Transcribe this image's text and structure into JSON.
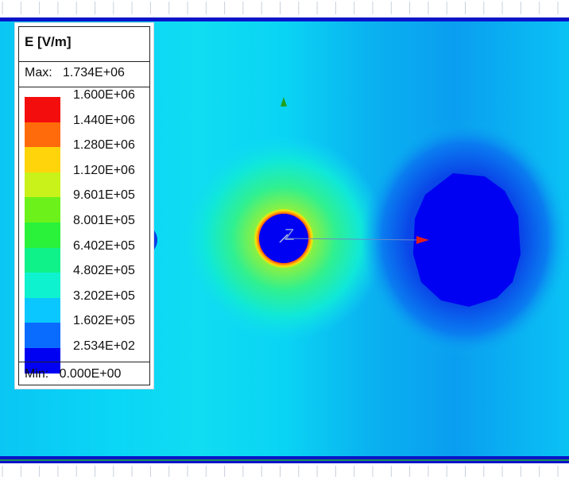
{
  "legend": {
    "title": "E [V/m]",
    "max_label": "Max:",
    "max_value": "1.734E+06",
    "min_label": "Min:",
    "min_value": "0.000E+00",
    "entries": [
      {
        "label": "1.600E+06",
        "color": "#f40d0d"
      },
      {
        "label": "1.440E+06",
        "color": "#ff6b0a"
      },
      {
        "label": "1.280E+06",
        "color": "#ffd40a"
      },
      {
        "label": "1.120E+06",
        "color": "#c8f21a"
      },
      {
        "label": "9.601E+05",
        "color": "#6cf21a"
      },
      {
        "label": "8.001E+05",
        "color": "#2af23a"
      },
      {
        "label": "6.402E+05",
        "color": "#0ff28a"
      },
      {
        "label": "4.802E+05",
        "color": "#0ff2d0"
      },
      {
        "label": "3.202E+05",
        "color": "#0ac8ff"
      },
      {
        "label": "1.602E+05",
        "color": "#0a6cff"
      },
      {
        "label": "2.534E+02",
        "color": "#0000f2"
      }
    ]
  },
  "axis": {
    "label": "Z"
  },
  "colors": {
    "background_field": "#08d0f6",
    "conductor": "#0000f2",
    "border_blue": "#0a14c8",
    "border_green": "#1e8c5a"
  }
}
